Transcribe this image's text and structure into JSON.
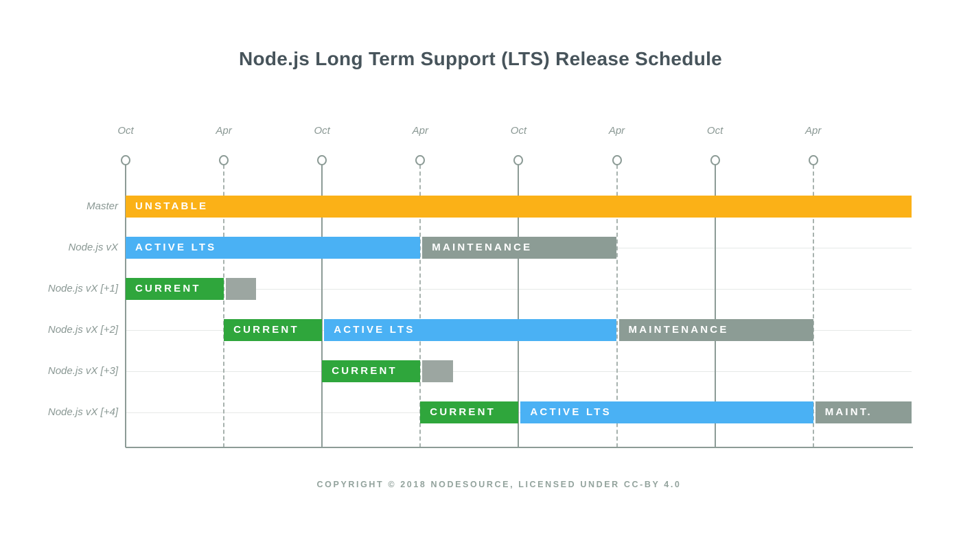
{
  "page": {
    "title": "Node.js Long Term Support (LTS) Release Schedule",
    "footer": "COPYRIGHT © 2018 NODESOURCE, LICENSED UNDER CC-BY 4.0"
  },
  "chart_data": {
    "type": "gantt",
    "title": "Node.js Long Term Support (LTS) Release Schedule",
    "footer": "COPYRIGHT © 2018 NODESOURCE, LICENSED UNDER CC-BY 4.0",
    "x_axis": {
      "unit": "months",
      "tick_interval_months": 6,
      "ticks": [
        {
          "label": "Oct",
          "line": "solid"
        },
        {
          "label": "Apr",
          "line": "dashed"
        },
        {
          "label": "Oct",
          "line": "solid"
        },
        {
          "label": "Apr",
          "line": "dashed"
        },
        {
          "label": "Oct",
          "line": "solid"
        },
        {
          "label": "Apr",
          "line": "dashed"
        },
        {
          "label": "Oct",
          "line": "solid"
        },
        {
          "label": "Apr",
          "line": "dashed"
        }
      ],
      "range_ticks": [
        0,
        8
      ]
    },
    "rows": [
      {
        "label": "Master",
        "bars": [
          {
            "label": "UNSTABLE",
            "kind": "unstable",
            "start": 0,
            "end": 8
          }
        ]
      },
      {
        "label": "Node.js vX",
        "bars": [
          {
            "label": "ACTIVE LTS",
            "kind": "active_lts",
            "start": 0,
            "end": 3
          },
          {
            "label": "MAINTENANCE",
            "kind": "maintenance",
            "start": 3,
            "end": 5
          }
        ]
      },
      {
        "label": "Node.js vX [+1]",
        "bars": [
          {
            "label": "CURRENT",
            "kind": "current",
            "start": 0,
            "end": 1
          },
          {
            "label": "",
            "kind": "maintenance_small",
            "start": 1,
            "end": 1.33
          }
        ]
      },
      {
        "label": "Node.js vX [+2]",
        "bars": [
          {
            "label": "CURRENT",
            "kind": "current",
            "start": 1,
            "end": 2
          },
          {
            "label": "ACTIVE LTS",
            "kind": "active_lts",
            "start": 2,
            "end": 5
          },
          {
            "label": "MAINTENANCE",
            "kind": "maintenance",
            "start": 5,
            "end": 7
          }
        ]
      },
      {
        "label": "Node.js vX [+3]",
        "bars": [
          {
            "label": "CURRENT",
            "kind": "current",
            "start": 2,
            "end": 3
          },
          {
            "label": "",
            "kind": "maintenance_small",
            "start": 3,
            "end": 3.33
          }
        ]
      },
      {
        "label": "Node.js vX [+4]",
        "bars": [
          {
            "label": "CURRENT",
            "kind": "current",
            "start": 3,
            "end": 4
          },
          {
            "label": "ACTIVE LTS",
            "kind": "active_lts",
            "start": 4,
            "end": 7
          },
          {
            "label": "MAINT.",
            "kind": "maintenance",
            "start": 7,
            "end": 8
          }
        ]
      }
    ],
    "colors": {
      "unstable": "#FBB117",
      "current": "#2FA63C",
      "active_lts": "#4AB1F4",
      "maintenance": "#8C9C95",
      "maintenance_small": "#9CA6A1",
      "bar_text": "#FFFFFF",
      "axis": "#8C9B96",
      "gridline_dashed": "#A7B2AE",
      "row_line": "#E6E9E7",
      "label_text": "#8A9894",
      "title_text": "#47545B",
      "footer_text": "#93A39D"
    },
    "legend": "none",
    "grid": "vertical gridlines at each tick; solid under Oct, dashed under Apr; thin light horizontal line per row"
  }
}
